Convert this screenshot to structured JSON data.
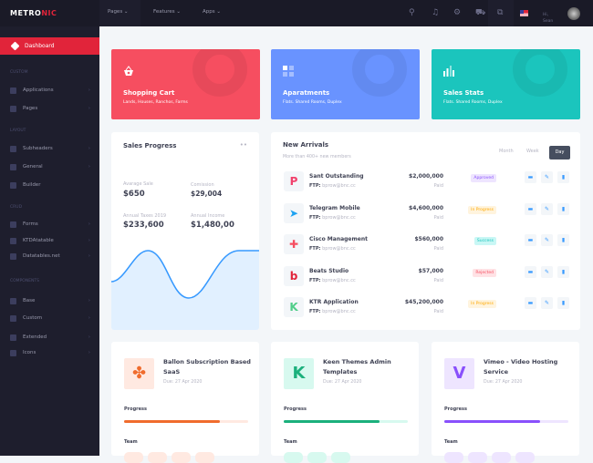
{
  "sidebar": {
    "logo_a": "METRO",
    "logo_b": "NIC",
    "active": "Dashboard",
    "sections": [
      "CUSTOM",
      "LAYOUT",
      "CRUD",
      "COMPONENTS"
    ],
    "items": [
      "Applications",
      "Pages",
      "Subheaders",
      "General",
      "Builder",
      "Forms",
      "KTDAtatable",
      "Datatables.net",
      "Base",
      "Custom",
      "Extended",
      "Icons"
    ]
  },
  "header": {
    "nav": [
      "Pages",
      "Features",
      "Apps"
    ],
    "greeting": "Hi,",
    "user": "Sean",
    "icons": [
      "search-icon",
      "bell-icon",
      "gear-icon",
      "cart-icon",
      "layers-icon",
      "us-flag-icon"
    ]
  },
  "tiles": [
    {
      "title": "Shopping Cart",
      "subtitle": "Lands, Houses, Ranchos, Farms",
      "color": "#f64e60"
    },
    {
      "title": "Aparatments",
      "subtitle": "Flats. Shared Rooms, Duplex",
      "color": "#6993ff"
    },
    {
      "title": "Sales Stats",
      "subtitle": "Flats. Shared Rooms, Duplex",
      "color": "#1bc5bd"
    }
  ],
  "sales": {
    "title": "Sales Progress",
    "stats": [
      {
        "label": "Avarage Sale",
        "value": "$650"
      },
      {
        "label": "Comission",
        "value": "$29,004"
      },
      {
        "label": "Annual Taxes 2019",
        "value": "$233,600"
      },
      {
        "label": "Annual Income",
        "value": "$1,480,00"
      }
    ]
  },
  "arrivals": {
    "title": "New Arrivals",
    "subtitle": "More than 400+ new members",
    "tabs": [
      "Month",
      "Week",
      "Day"
    ],
    "active_tab": "Day",
    "ftp_label": "FTP:",
    "rows": [
      {
        "name": "Sant Outstanding",
        "ftp": "bprow@bnc.cc",
        "amount": "$2,000,000",
        "paid": "Paid",
        "status": "Approved",
        "logo": "P",
        "logo_color": "#f1416c"
      },
      {
        "name": "Telegram Mobile",
        "ftp": "bprow@bnc.cc",
        "amount": "$4,600,000",
        "paid": "Paid",
        "status": "In Progress",
        "logo": "➤",
        "logo_color": "#1ea2f1"
      },
      {
        "name": "Cisco Management",
        "ftp": "bprow@bnc.cc",
        "amount": "$560,000",
        "paid": "Paid",
        "status": "Success",
        "logo": "✚",
        "logo_color": "#f64e60"
      },
      {
        "name": "Beats Studio",
        "ftp": "bprow@bnc.cc",
        "amount": "$57,000",
        "paid": "Paid",
        "status": "Rejected",
        "logo": "b",
        "logo_color": "#e1243a"
      },
      {
        "name": "KTR Application",
        "ftp": "bprow@bnc.cc",
        "amount": "$45,200,000",
        "paid": "Paid",
        "status": "In Progress",
        "logo": "K",
        "logo_color": "#50cd89"
      }
    ]
  },
  "projects": [
    {
      "title": "Ballon Subscription Based SaaS",
      "due": "Due: 27 Apr 2020",
      "progress_label": "Progress",
      "progress": 0.77,
      "team_label": "Team",
      "color": "#f06c2d",
      "light": "#ffe9e1",
      "logo": "✤"
    },
    {
      "title": "Keen Themes Admin Templates",
      "due": "Due: 27 Apr 2020",
      "progress_label": "Progress",
      "progress": 0.77,
      "team_label": "Team",
      "color": "#1bb07c",
      "light": "#d7f9ef",
      "logo": "K"
    },
    {
      "title": "Vimeo - Video Hosting Service",
      "due": "Due: 27 Apr 2020",
      "progress_label": "Progress",
      "progress": 0.77,
      "team_label": "Team",
      "color": "#8950fc",
      "light": "#eee5ff",
      "logo": "V"
    }
  ]
}
